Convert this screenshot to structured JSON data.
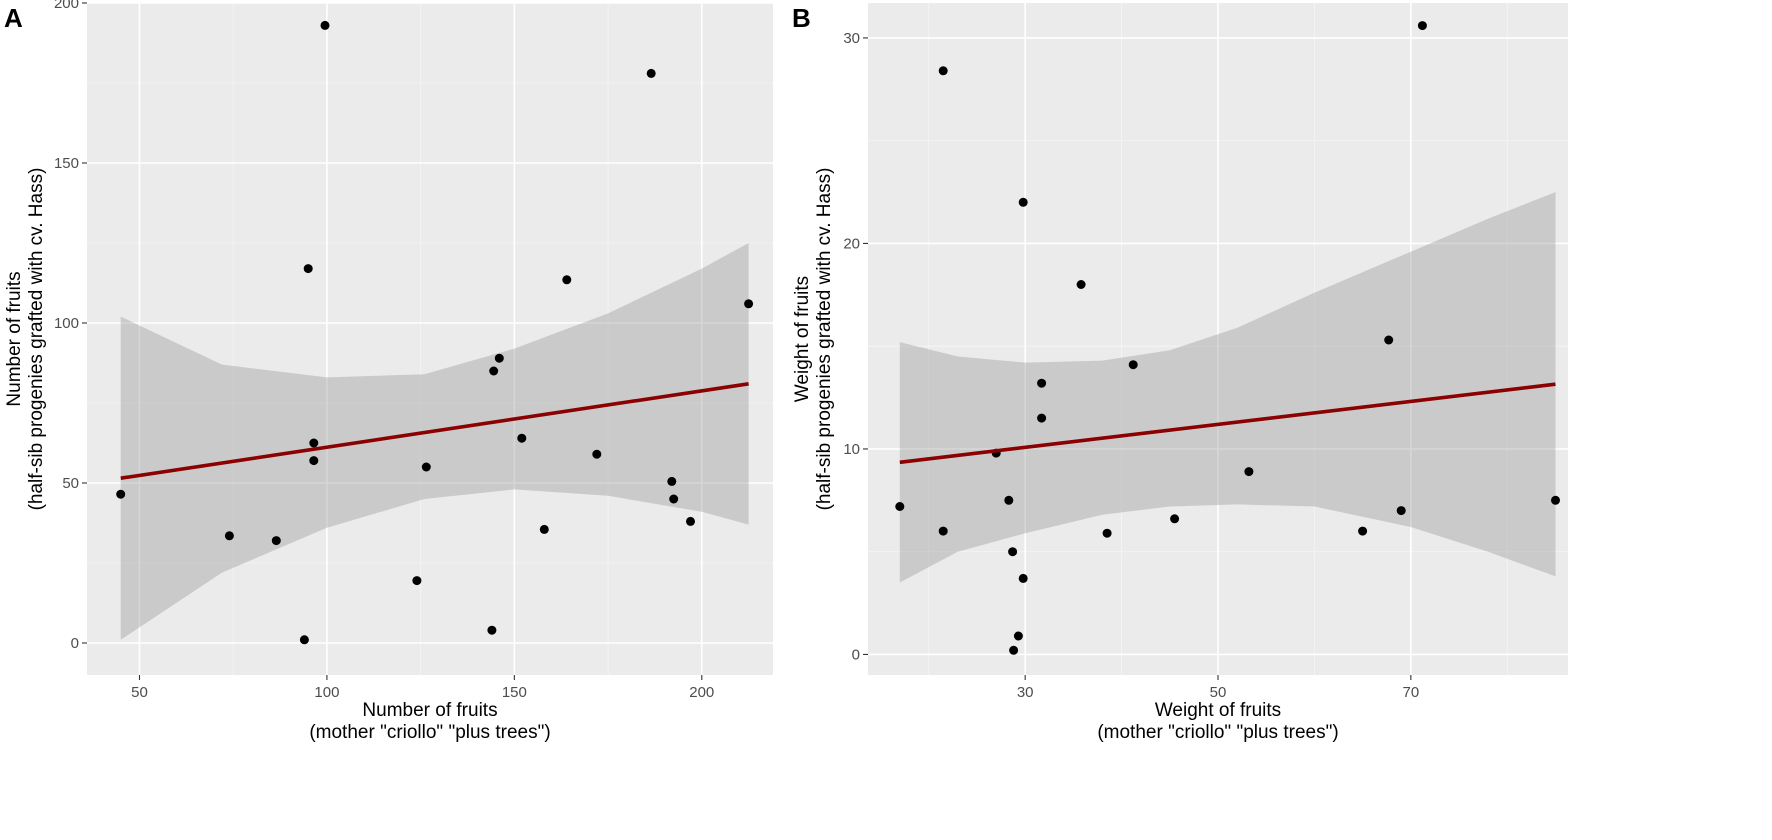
{
  "chart_data": [
    {
      "panel": "A",
      "type": "scatter",
      "xlabel": [
        "Number of fruits",
        "(mother \"criollo\" \"plus trees\")"
      ],
      "ylabel": [
        "Number of fruits",
        "(half-sib progenies grafted with cv. Hass)"
      ],
      "xlim": [
        36,
        219
      ],
      "ylim": [
        -10,
        200
      ],
      "xticks": [
        50,
        100,
        150,
        200
      ],
      "yticks": [
        0,
        50,
        100,
        150,
        200
      ],
      "grid": true,
      "points": [
        {
          "x": 45,
          "y": 46.5
        },
        {
          "x": 74,
          "y": 33.5
        },
        {
          "x": 86.5,
          "y": 32
        },
        {
          "x": 94,
          "y": 1
        },
        {
          "x": 95,
          "y": 117
        },
        {
          "x": 96.5,
          "y": 62.5
        },
        {
          "x": 96.5,
          "y": 57
        },
        {
          "x": 99.5,
          "y": 193
        },
        {
          "x": 124,
          "y": 19.5
        },
        {
          "x": 126.5,
          "y": 55
        },
        {
          "x": 144,
          "y": 4
        },
        {
          "x": 144.5,
          "y": 85
        },
        {
          "x": 146,
          "y": 89
        },
        {
          "x": 152,
          "y": 64
        },
        {
          "x": 158,
          "y": 35.5
        },
        {
          "x": 164,
          "y": 113.5
        },
        {
          "x": 172,
          "y": 59
        },
        {
          "x": 186.5,
          "y": 178
        },
        {
          "x": 192,
          "y": 50.5
        },
        {
          "x": 192.5,
          "y": 45
        },
        {
          "x": 197,
          "y": 38
        },
        {
          "x": 212.5,
          "y": 106
        }
      ],
      "fit": {
        "x": [
          45,
          212.5
        ],
        "y": [
          51.5,
          81
        ]
      },
      "ci_band": {
        "x": [
          45,
          72,
          100,
          126,
          150,
          175,
          200,
          212.5
        ],
        "lower": [
          1,
          22,
          36,
          45,
          48,
          46,
          41,
          37
        ],
        "upper": [
          102,
          87,
          83,
          84,
          92,
          103,
          117,
          125
        ]
      }
    },
    {
      "panel": "B",
      "type": "scatter",
      "xlabel": [
        "Weight of fruits",
        "(mother \"criollo\" \"plus trees\")"
      ],
      "ylabel": [
        "Weight of fruits",
        "(half-sib progenies grafted with cv. Hass)"
      ],
      "xlim": [
        13.7,
        86.3
      ],
      "ylim": [
        -1,
        31.7
      ],
      "xticks": [
        30,
        50,
        70
      ],
      "yticks": [
        0,
        10,
        20,
        30
      ],
      "grid": true,
      "points": [
        {
          "x": 17,
          "y": 7.2
        },
        {
          "x": 21.5,
          "y": 28.4
        },
        {
          "x": 21.5,
          "y": 6
        },
        {
          "x": 27,
          "y": 9.8
        },
        {
          "x": 28.3,
          "y": 7.5
        },
        {
          "x": 28.7,
          "y": 5
        },
        {
          "x": 28.8,
          "y": 0.2
        },
        {
          "x": 29.3,
          "y": 0.9
        },
        {
          "x": 29.8,
          "y": 22
        },
        {
          "x": 29.8,
          "y": 3.7
        },
        {
          "x": 31.7,
          "y": 13.2
        },
        {
          "x": 31.7,
          "y": 11.5
        },
        {
          "x": 35.8,
          "y": 18
        },
        {
          "x": 38.5,
          "y": 5.9
        },
        {
          "x": 41.2,
          "y": 14.1
        },
        {
          "x": 45.5,
          "y": 6.6
        },
        {
          "x": 53.2,
          "y": 8.9
        },
        {
          "x": 65,
          "y": 6
        },
        {
          "x": 67.7,
          "y": 15.3
        },
        {
          "x": 69,
          "y": 7
        },
        {
          "x": 71.2,
          "y": 30.6
        },
        {
          "x": 85,
          "y": 7.5
        }
      ],
      "fit": {
        "x": [
          17,
          85
        ],
        "y": [
          9.35,
          13.15
        ]
      },
      "ci_band": {
        "x": [
          17,
          23,
          30,
          38,
          45,
          52,
          60,
          70,
          78,
          85
        ],
        "lower": [
          3.5,
          5.0,
          5.9,
          6.8,
          7.2,
          7.3,
          7.2,
          6.2,
          5.0,
          3.8
        ],
        "upper": [
          15.2,
          14.5,
          14.2,
          14.3,
          14.8,
          15.9,
          17.6,
          19.6,
          21.2,
          22.5
        ]
      }
    }
  ]
}
